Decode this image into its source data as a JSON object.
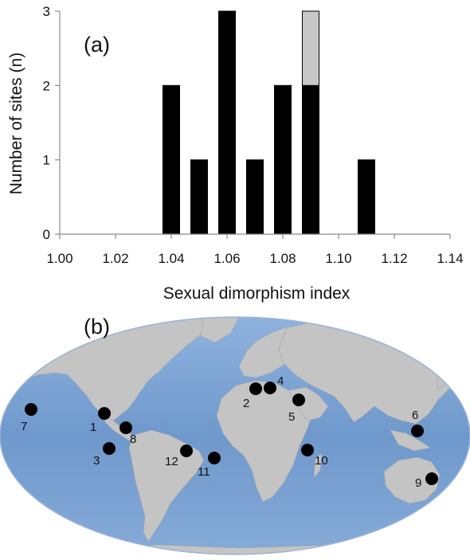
{
  "chart_data": {
    "type": "bar",
    "panel_label": "(a)",
    "xlabel": "Sexual dimorphism index",
    "ylabel": "Number of sites (n)",
    "xlim": [
      1.0,
      1.14
    ],
    "ylim": [
      0,
      3
    ],
    "x_ticks": [
      "1.00",
      "1.02",
      "1.04",
      "1.06",
      "1.08",
      "1.10",
      "1.12",
      "1.14"
    ],
    "y_ticks": [
      "0",
      "1",
      "2",
      "3"
    ],
    "bin_width": 0.01,
    "grid": false,
    "series": [
      {
        "color": "#000000",
        "x": [
          1.04,
          1.05,
          1.06,
          1.07,
          1.08,
          1.09,
          1.11
        ],
        "values": [
          2,
          1,
          3,
          1,
          2,
          2,
          1
        ]
      },
      {
        "color": "#c8c8c8",
        "x": [
          1.04,
          1.05,
          1.06,
          1.07,
          1.08,
          1.09,
          1.11
        ],
        "values": [
          0,
          0,
          0,
          0,
          0,
          1,
          0
        ]
      }
    ]
  },
  "map": {
    "panel_label": "(b)",
    "ocean_color": "#7aa0d0",
    "land_color": "#c2c2c2",
    "sites": [
      {
        "label": "1",
        "region": "Pacific coast of Mexico"
      },
      {
        "label": "2",
        "region": "Mediterranean, Libya"
      },
      {
        "label": "3",
        "region": "Eastern Pacific, Ecuador"
      },
      {
        "label": "4",
        "region": "Eastern Mediterranean"
      },
      {
        "label": "5",
        "region": "Persian Gulf"
      },
      {
        "label": "6",
        "region": "Philippines"
      },
      {
        "label": "7",
        "region": "Hawaii"
      },
      {
        "label": "8",
        "region": "Caribbean"
      },
      {
        "label": "9",
        "region": "Eastern Australia"
      },
      {
        "label": "10",
        "region": "Western Indian Ocean"
      },
      {
        "label": "11",
        "region": "South Atlantic"
      },
      {
        "label": "12",
        "region": "Brazil coast"
      }
    ]
  }
}
